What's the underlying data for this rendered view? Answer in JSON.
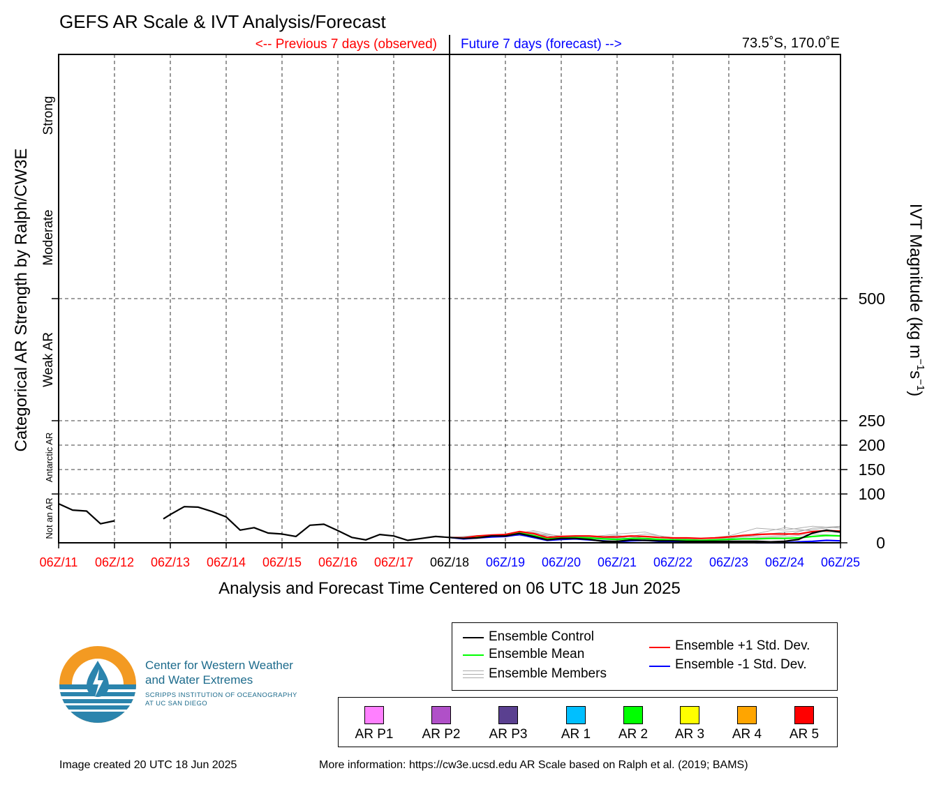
{
  "header": {
    "title": "GEFS AR Scale & IVT Analysis/Forecast",
    "previous_label": "<-- Previous 7 days (observed)",
    "future_label": "Future 7 days (forecast) -->",
    "location": "73.5˚S, 170.0˚E"
  },
  "colors": {
    "observed": "#ff0000",
    "forecast": "#0000ff",
    "control": "#000000",
    "mean": "#00ff00",
    "plus_std": "#ff0000",
    "minus_std": "#0000ff",
    "members": "#aaaaaa"
  },
  "chart_data": {
    "type": "line",
    "xlabel": "Analysis and Forecast Time Centered on 06 UTC 18 Jun 2025",
    "ylabel_left": "Categorical AR Strength by Ralph/CW3E",
    "ylabel_right": "IVT Magnitude (kg m",
    "ylabel_right_sup1": "−1",
    "ylabel_right_mid": "s",
    "ylabel_right_sup2": "−1",
    "ylabel_right_end": ")",
    "x_unit": "days from 06Z/11 Jun 2025",
    "xlim": [
      0,
      14
    ],
    "ylim": [
      0,
      1000
    ],
    "y_ticks": [
      0,
      100,
      150,
      200,
      250,
      500
    ],
    "grid": true,
    "x_ticks": [
      {
        "label": "06Z/11",
        "class": "observed"
      },
      {
        "label": "06Z/12",
        "class": "observed"
      },
      {
        "label": "06Z/13",
        "class": "observed"
      },
      {
        "label": "06Z/14",
        "class": "observed"
      },
      {
        "label": "06Z/15",
        "class": "observed"
      },
      {
        "label": "06Z/16",
        "class": "observed"
      },
      {
        "label": "06Z/17",
        "class": "observed"
      },
      {
        "label": "06Z/18",
        "class": "center"
      },
      {
        "label": "06Z/19",
        "class": "forecast"
      },
      {
        "label": "06Z/20",
        "class": "forecast"
      },
      {
        "label": "06Z/21",
        "class": "forecast"
      },
      {
        "label": "06Z/22",
        "class": "forecast"
      },
      {
        "label": "06Z/23",
        "class": "forecast"
      },
      {
        "label": "06Z/24",
        "class": "forecast"
      },
      {
        "label": "06Z/25",
        "class": "forecast"
      }
    ],
    "category_labels": [
      {
        "label": "Not an AR",
        "y_range": [
          0,
          100
        ]
      },
      {
        "label": "Antarctic AR",
        "y_range": [
          100,
          250
        ]
      },
      {
        "label": "Weak AR",
        "y_range": [
          250,
          500
        ]
      },
      {
        "label": "Moderate",
        "y_range": [
          500,
          750
        ]
      },
      {
        "label": "Strong",
        "y_range": [
          750,
          1000
        ]
      }
    ],
    "series": [
      {
        "name": "Ensemble Control",
        "color": "#000000",
        "segments": [
          [
            [
              0,
              80
            ],
            [
              0.25,
              67
            ],
            [
              0.5,
              65
            ],
            [
              0.75,
              39
            ],
            [
              1,
              45
            ]
          ],
          [
            [
              1.875,
              49
            ],
            [
              2,
              58
            ],
            [
              2.25,
              74
            ],
            [
              2.5,
              73
            ],
            [
              2.75,
              64
            ],
            [
              3,
              53
            ],
            [
              3.25,
              26
            ],
            [
              3.5,
              31
            ],
            [
              3.75,
              20
            ],
            [
              4,
              18
            ],
            [
              4.25,
              13
            ],
            [
              4.5,
              36
            ],
            [
              4.75,
              38
            ],
            [
              5,
              25
            ],
            [
              5.25,
              11
            ],
            [
              5.5,
              6
            ],
            [
              5.75,
              17
            ],
            [
              6,
              14
            ],
            [
              6.25,
              5
            ],
            [
              6.5,
              9
            ],
            [
              6.75,
              13
            ],
            [
              7,
              11
            ],
            [
              7.25,
              9
            ],
            [
              7.5,
              10
            ],
            [
              7.75,
              14
            ],
            [
              8,
              14
            ],
            [
              8.25,
              19
            ],
            [
              8.5,
              13
            ],
            [
              8.75,
              6
            ],
            [
              9,
              9
            ],
            [
              9.25,
              9
            ],
            [
              9.5,
              7
            ],
            [
              9.75,
              3
            ],
            [
              10,
              3
            ],
            [
              10.25,
              6
            ],
            [
              10.5,
              5
            ],
            [
              10.75,
              4
            ],
            [
              11,
              4
            ],
            [
              11.25,
              3
            ],
            [
              11.5,
              3
            ],
            [
              11.75,
              3
            ],
            [
              12,
              3
            ],
            [
              12.25,
              3
            ],
            [
              12.5,
              3
            ],
            [
              12.75,
              2
            ],
            [
              13,
              3
            ],
            [
              13.25,
              7
            ],
            [
              13.5,
              20
            ],
            [
              13.75,
              26
            ],
            [
              14,
              22
            ]
          ]
        ]
      },
      {
        "name": "Ensemble Mean",
        "color": "#00ff00",
        "segments": [
          [
            [
              7,
              11
            ],
            [
              7.25,
              9
            ],
            [
              7.5,
              12
            ],
            [
              7.75,
              14
            ],
            [
              8,
              15
            ],
            [
              8.25,
              20
            ],
            [
              8.5,
              15
            ],
            [
              8.75,
              8
            ],
            [
              9,
              10
            ],
            [
              9.25,
              11
            ],
            [
              9.5,
              10
            ],
            [
              9.75,
              8
            ],
            [
              10,
              7
            ],
            [
              10.25,
              9
            ],
            [
              10.5,
              9
            ],
            [
              10.75,
              7
            ],
            [
              11,
              6
            ],
            [
              11.25,
              6
            ],
            [
              11.5,
              5
            ],
            [
              11.75,
              6
            ],
            [
              12,
              7
            ],
            [
              12.25,
              8
            ],
            [
              12.5,
              8
            ],
            [
              12.75,
              9
            ],
            [
              13,
              9
            ],
            [
              13.25,
              10
            ],
            [
              13.5,
              13
            ],
            [
              13.75,
              15
            ],
            [
              14,
              14
            ]
          ]
        ]
      },
      {
        "name": "Ensemble +1 Std. Dev.",
        "color": "#ff0000",
        "segments": [
          [
            [
              7,
              11
            ],
            [
              7.25,
              10
            ],
            [
              7.5,
              14
            ],
            [
              7.75,
              16
            ],
            [
              8,
              17
            ],
            [
              8.25,
              23
            ],
            [
              8.5,
              19
            ],
            [
              8.75,
              11
            ],
            [
              9,
              13
            ],
            [
              9.25,
              14
            ],
            [
              9.5,
              14
            ],
            [
              9.75,
              12
            ],
            [
              10,
              12
            ],
            [
              10.25,
              14
            ],
            [
              10.5,
              13
            ],
            [
              10.75,
              11
            ],
            [
              11,
              10
            ],
            [
              11.25,
              10
            ],
            [
              11.5,
              9
            ],
            [
              11.75,
              10
            ],
            [
              12,
              12
            ],
            [
              12.25,
              15
            ],
            [
              12.5,
              17
            ],
            [
              12.75,
              18
            ],
            [
              13,
              18
            ],
            [
              13.25,
              18
            ],
            [
              13.5,
              23
            ],
            [
              13.75,
              25
            ],
            [
              14,
              24
            ]
          ]
        ]
      },
      {
        "name": "Ensemble -1 Std. Dev.",
        "color": "#0000ff",
        "segments": [
          [
            [
              7,
              11
            ],
            [
              7.25,
              8
            ],
            [
              7.5,
              10
            ],
            [
              7.75,
              12
            ],
            [
              8,
              13
            ],
            [
              8.25,
              17
            ],
            [
              8.5,
              11
            ],
            [
              8.75,
              5
            ],
            [
              9,
              7
            ],
            [
              9.25,
              8
            ],
            [
              9.5,
              6
            ],
            [
              9.75,
              4
            ],
            [
              10,
              2
            ],
            [
              10.25,
              4
            ],
            [
              10.5,
              5
            ],
            [
              10.75,
              3
            ],
            [
              11,
              2
            ],
            [
              11.25,
              2
            ],
            [
              11.5,
              1
            ],
            [
              11.75,
              2
            ],
            [
              12,
              2
            ],
            [
              12.25,
              1
            ],
            [
              12.5,
              0
            ],
            [
              12.75,
              0
            ],
            [
              13,
              0
            ],
            [
              13.25,
              2
            ],
            [
              13.5,
              3
            ],
            [
              13.75,
              5
            ],
            [
              14,
              4
            ]
          ]
        ]
      }
    ],
    "members": [
      [
        [
          7,
          11
        ],
        [
          7.5,
          15
        ],
        [
          8,
          14
        ],
        [
          8.5,
          25
        ],
        [
          9,
          12
        ],
        [
          9.5,
          12
        ],
        [
          10,
          9
        ],
        [
          10.5,
          18
        ],
        [
          11,
          11
        ],
        [
          11.5,
          8
        ],
        [
          12,
          14
        ],
        [
          12.5,
          30
        ],
        [
          13,
          26
        ],
        [
          13.5,
          34
        ],
        [
          14,
          30
        ]
      ],
      [
        [
          7,
          11
        ],
        [
          7.5,
          12
        ],
        [
          8,
          17
        ],
        [
          8.5,
          18
        ],
        [
          9,
          11
        ],
        [
          9.5,
          13
        ],
        [
          10,
          6
        ],
        [
          10.5,
          13
        ],
        [
          11,
          9
        ],
        [
          11.5,
          4
        ],
        [
          12,
          8
        ],
        [
          12.5,
          19
        ],
        [
          13,
          31
        ],
        [
          13.5,
          24
        ],
        [
          14,
          21
        ]
      ],
      [
        [
          7,
          11
        ],
        [
          7.5,
          10
        ],
        [
          8,
          15
        ],
        [
          8.5,
          22
        ],
        [
          9,
          8
        ],
        [
          9.5,
          9
        ],
        [
          10,
          11
        ],
        [
          10.5,
          7
        ],
        [
          11,
          5
        ],
        [
          11.5,
          8
        ],
        [
          12,
          11
        ],
        [
          12.5,
          12
        ],
        [
          13,
          15
        ],
        [
          13.5,
          30
        ],
        [
          14,
          34
        ]
      ],
      [
        [
          7,
          11
        ],
        [
          7.5,
          14
        ],
        [
          8,
          13
        ],
        [
          8.5,
          20
        ],
        [
          9,
          14
        ],
        [
          9.5,
          12
        ],
        [
          10,
          18
        ],
        [
          10.5,
          22
        ],
        [
          11,
          7
        ],
        [
          11.5,
          9
        ],
        [
          12,
          9
        ],
        [
          12.5,
          15
        ],
        [
          13,
          22
        ],
        [
          13.5,
          27
        ],
        [
          14,
          33
        ]
      ],
      [
        [
          7,
          11
        ],
        [
          7.5,
          11
        ],
        [
          8,
          16
        ],
        [
          8.5,
          13
        ],
        [
          9,
          10
        ],
        [
          9.5,
          10
        ],
        [
          10,
          15
        ],
        [
          10.5,
          9
        ],
        [
          11,
          6
        ],
        [
          11.5,
          5
        ],
        [
          12,
          6
        ],
        [
          12.5,
          10
        ],
        [
          13,
          12
        ],
        [
          13.5,
          18
        ],
        [
          14,
          15
        ]
      ]
    ]
  },
  "legend": {
    "control": "Ensemble Control",
    "mean": "Ensemble Mean",
    "members": "Ensemble Members",
    "plus_std": "Ensemble +1 Std. Dev.",
    "minus_std": "Ensemble -1 Std. Dev."
  },
  "categories": [
    {
      "label": "AR P1",
      "color": "#ff80ff"
    },
    {
      "label": "AR P2",
      "color": "#b050c8"
    },
    {
      "label": "AR P3",
      "color": "#5a4090"
    },
    {
      "label": "AR 1",
      "color": "#00bfff"
    },
    {
      "label": "AR 2",
      "color": "#00ff00"
    },
    {
      "label": "AR 3",
      "color": "#ffff00"
    },
    {
      "label": "AR 4",
      "color": "#ffa500"
    },
    {
      "label": "AR 5",
      "color": "#ff0000"
    }
  ],
  "logo": {
    "line1": "Center for Western Weather",
    "line2": "and Water Extremes",
    "line3": "SCRIPPS INSTITUTION OF OCEANOGRAPHY",
    "line4": "AT UC SAN DIEGO"
  },
  "footer": {
    "created": "Image created 20 UTC 18 Jun 2025",
    "info": "More information: https://cw3e.ucsd.edu AR Scale based on Ralph et al. (2019; BAMS)"
  }
}
